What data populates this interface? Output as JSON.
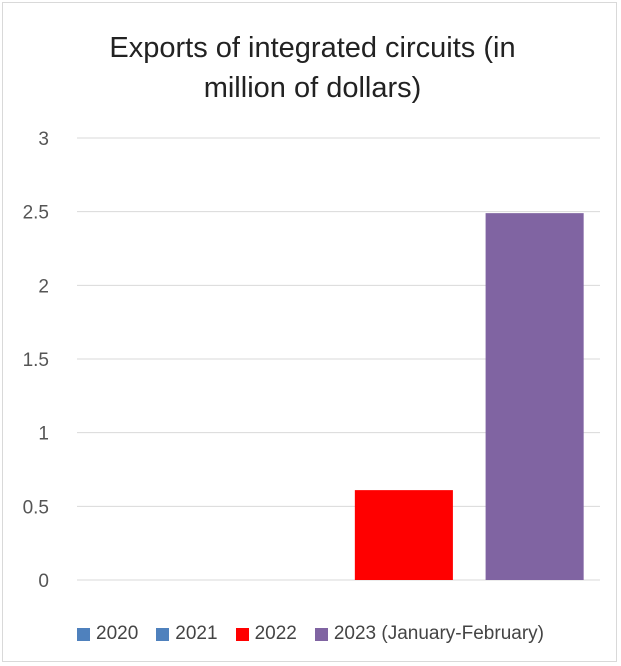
{
  "chart_data": {
    "type": "bar",
    "title": "Exports of integrated circuits (in million of dollars)",
    "title_lines": [
      "Exports of integrated circuits (in",
      "million of dollars)"
    ],
    "categories": [
      "2020",
      "2021",
      "2022",
      "2023 (January-February)"
    ],
    "values": [
      0,
      0,
      0.61,
      2.49
    ],
    "colors": [
      "#4f81bd",
      "#4f81bd",
      "#ff0000",
      "#8064a2"
    ],
    "ylim": [
      0,
      3
    ],
    "yticks": [
      "0",
      "0.5",
      "1",
      "1.5",
      "2",
      "2.5",
      "3"
    ],
    "grid": true,
    "legend_position": "bottom",
    "legend": [
      {
        "label": "2020",
        "color": "#4f81bd"
      },
      {
        "label": "2021",
        "color": "#4f81bd"
      },
      {
        "label": "2022",
        "color": "#ff0000"
      },
      {
        "label": "2023 (January-February)",
        "color": "#8064a2"
      }
    ]
  }
}
